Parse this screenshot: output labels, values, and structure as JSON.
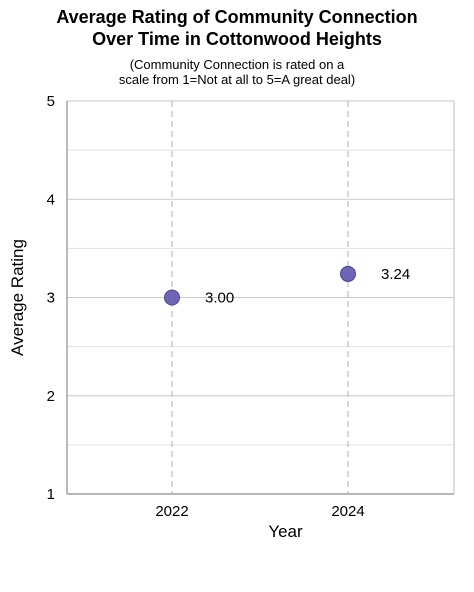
{
  "chart_data": {
    "type": "scatter",
    "title": "Average Rating of Community Connection\nOver Time in Cottonwood Heights",
    "subtitle": "(Community Connection is rated on a\nscale from 1=Not at all to 5=A great deal)",
    "xlabel": "Year",
    "ylabel": "Average Rating",
    "categories": [
      "2022",
      "2024"
    ],
    "values": [
      3.0,
      3.24
    ],
    "data_labels": [
      "3.00",
      "3.24"
    ],
    "ylim": [
      1,
      5
    ],
    "yticks": [
      "1",
      "2",
      "3",
      "4",
      "5"
    ],
    "grid": true,
    "legend": "none",
    "marker_color": "#6e66b4",
    "marker_edge_color": "#4b4596"
  }
}
